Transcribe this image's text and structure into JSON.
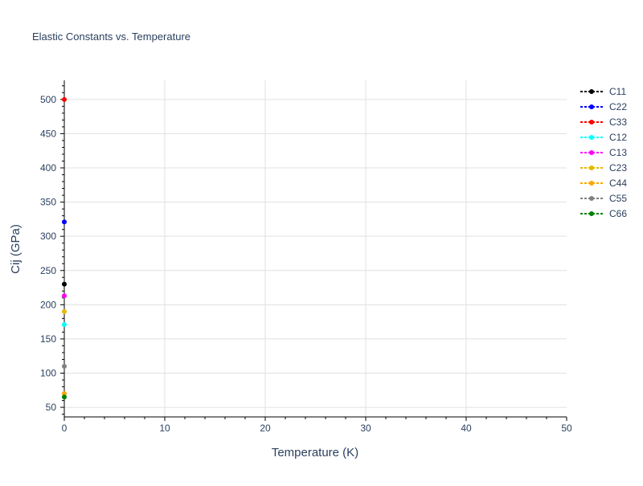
{
  "chart_data": {
    "type": "scatter",
    "title": "Elastic Constants vs. Temperature",
    "xlabel": "Temperature (K)",
    "ylabel": "Cij (GPa)",
    "xlim": [
      0,
      50
    ],
    "ylim": [
      36,
      528
    ],
    "xticks": [
      0,
      10,
      20,
      30,
      40,
      50
    ],
    "yticks": [
      50,
      100,
      150,
      200,
      250,
      300,
      350,
      400,
      450,
      500
    ],
    "grid": true,
    "legend_position": "right",
    "series": [
      {
        "name": "C11",
        "color": "#000000",
        "x": [
          0
        ],
        "y": [
          230
        ]
      },
      {
        "name": "C22",
        "color": "#0000ff",
        "x": [
          0
        ],
        "y": [
          321
        ]
      },
      {
        "name": "C33",
        "color": "#ff0000",
        "x": [
          0
        ],
        "y": [
          500
        ]
      },
      {
        "name": "C12",
        "color": "#00ffff",
        "x": [
          0
        ],
        "y": [
          171
        ]
      },
      {
        "name": "C13",
        "color": "#ff00ff",
        "x": [
          0
        ],
        "y": [
          213
        ]
      },
      {
        "name": "C23",
        "color": "#e6b800",
        "x": [
          0
        ],
        "y": [
          190
        ]
      },
      {
        "name": "C44",
        "color": "#ffa500",
        "x": [
          0
        ],
        "y": [
          70
        ]
      },
      {
        "name": "C55",
        "color": "#808080",
        "x": [
          0
        ],
        "y": [
          110
        ]
      },
      {
        "name": "C66",
        "color": "#008000",
        "x": [
          0
        ],
        "y": [
          65
        ]
      }
    ]
  }
}
